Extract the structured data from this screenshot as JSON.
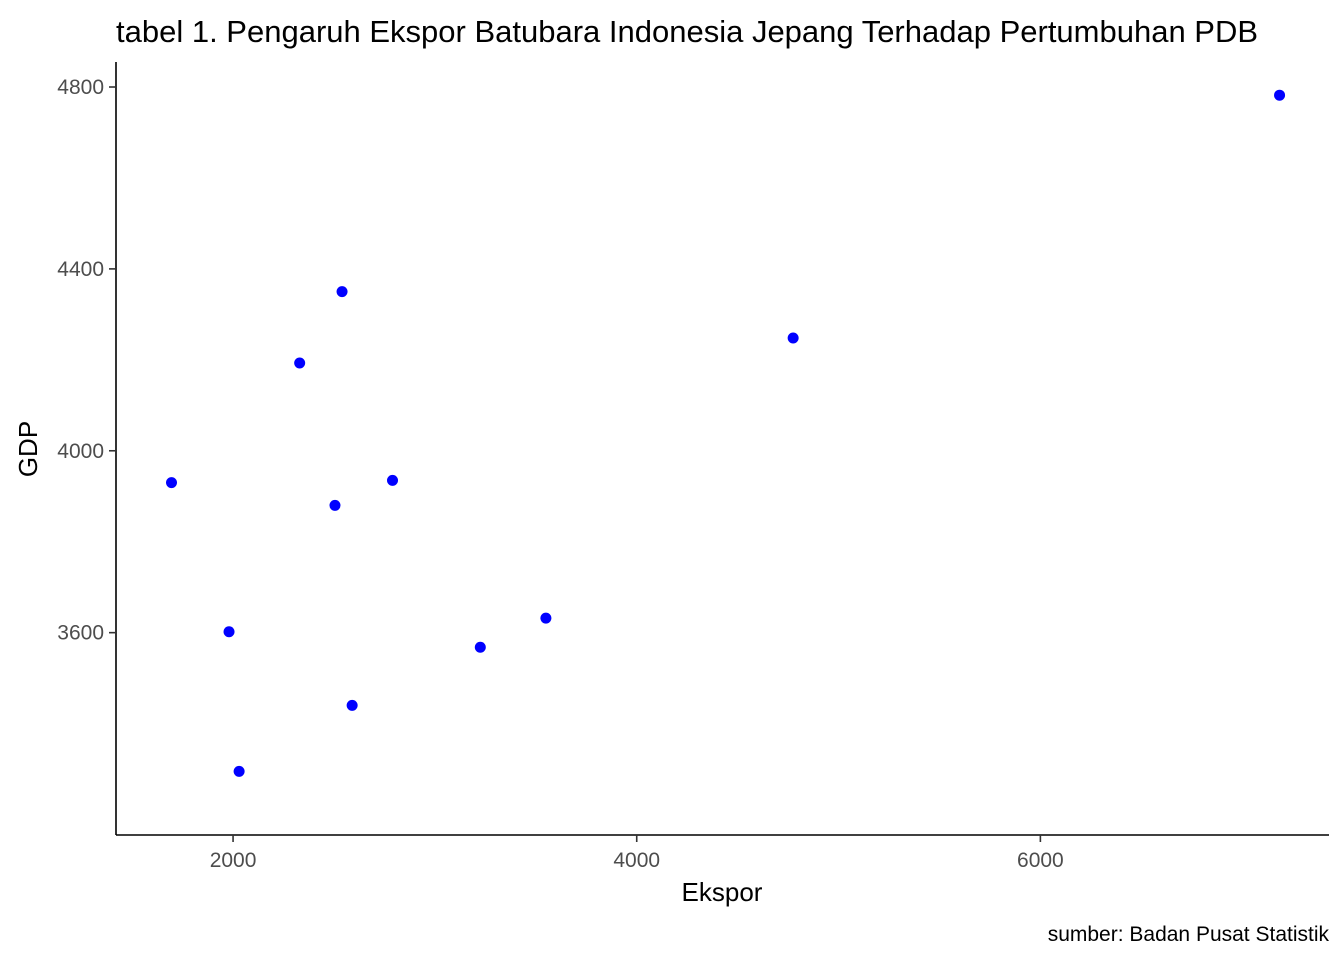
{
  "chart_data": {
    "type": "scatter",
    "title": "tabel 1. Pengaruh Ekspor Batubara Indonesia Jepang Terhadap Pertumbuhan PDB",
    "xlabel": "Ekspor",
    "ylabel": "GDP",
    "caption": "sumber: Badan Pusat Statistik",
    "xlim": [
      1420,
      7430
    ],
    "ylim": [
      3155,
      4855
    ],
    "x_ticks": [
      2000,
      4000,
      6000
    ],
    "y_ticks": [
      3600,
      4000,
      4400,
      4800
    ],
    "grid": false,
    "point_color": "#0000ff",
    "points": [
      {
        "x": 1695,
        "y": 3930
      },
      {
        "x": 1980,
        "y": 3602
      },
      {
        "x": 2030,
        "y": 3295
      },
      {
        "x": 2330,
        "y": 4193
      },
      {
        "x": 2505,
        "y": 3880
      },
      {
        "x": 2540,
        "y": 4350
      },
      {
        "x": 2590,
        "y": 3440
      },
      {
        "x": 2790,
        "y": 3935
      },
      {
        "x": 3225,
        "y": 3568
      },
      {
        "x": 3550,
        "y": 3632
      },
      {
        "x": 4775,
        "y": 4248
      },
      {
        "x": 7185,
        "y": 4782
      }
    ]
  }
}
